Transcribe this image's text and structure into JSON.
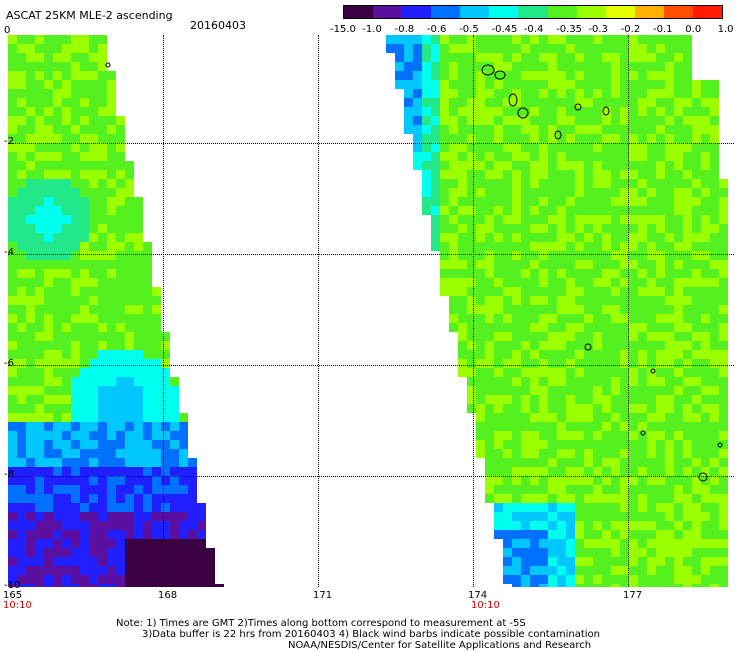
{
  "header": {
    "title": "ASCAT 25KM MLE-2 ascending",
    "date": "20160403"
  },
  "colorbar": {
    "labels": [
      "-15.0",
      "-1.0",
      "-0.8",
      "-0.6",
      "-0.5",
      "-0.45",
      "-0.4",
      "-0.35",
      "-0.3",
      "-0.2",
      "-0.1",
      "0.0",
      "1.0"
    ],
    "colors": [
      "#3a003f",
      "#5a0fa0",
      "#1f1fff",
      "#0070ff",
      "#00c8ff",
      "#00ffee",
      "#22e88a",
      "#55f020",
      "#9cff00",
      "#e5ff00",
      "#ffb000",
      "#ff5000",
      "#ff1a00"
    ]
  },
  "axes": {
    "x_ticks": [
      "165",
      "168",
      "171",
      "174",
      "177"
    ],
    "y_ticks": [
      "0",
      "-2",
      "-4",
      "-6",
      "-8",
      "-10"
    ],
    "times": [
      "10:10",
      "10:10"
    ]
  },
  "notes": [
    "Note: 1) Times are GMT 2)Times along bottom correspond to measurement at -5S",
    "3)Data buffer is 22 hrs from 20160403 4) Black wind barbs indicate possible contamination",
    "NOAA/NESDIS/Center for Satellite Applications and Research"
  ]
}
